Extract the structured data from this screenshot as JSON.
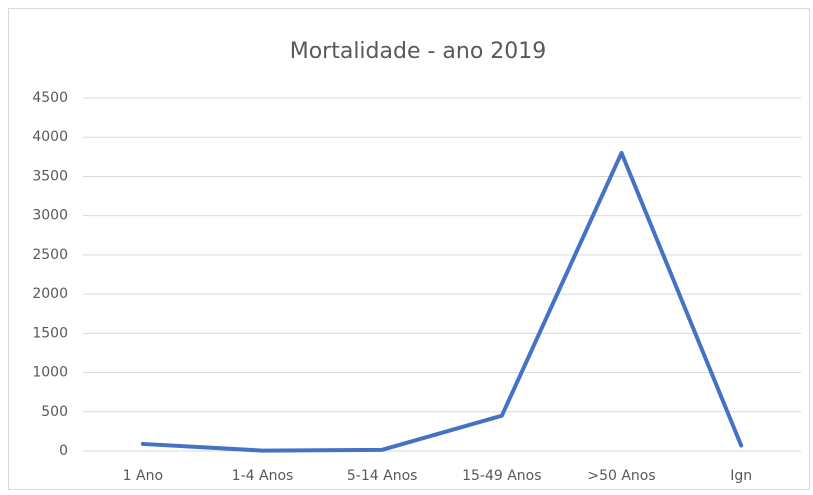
{
  "chart_data": {
    "type": "line",
    "title": "Mortalidade - ano 2019",
    "categories": [
      "1 Ano",
      "1-4 Anos",
      "5-14 Anos",
      "15-49 Anos",
      ">50 Anos",
      "Ign"
    ],
    "values": [
      90,
      5,
      15,
      450,
      3800,
      70
    ],
    "color": "#4472c4",
    "ylim": [
      0,
      4500
    ],
    "yticks": [
      0,
      500,
      1000,
      1500,
      2000,
      2500,
      3000,
      3500,
      4000,
      4500
    ],
    "grid": true
  }
}
